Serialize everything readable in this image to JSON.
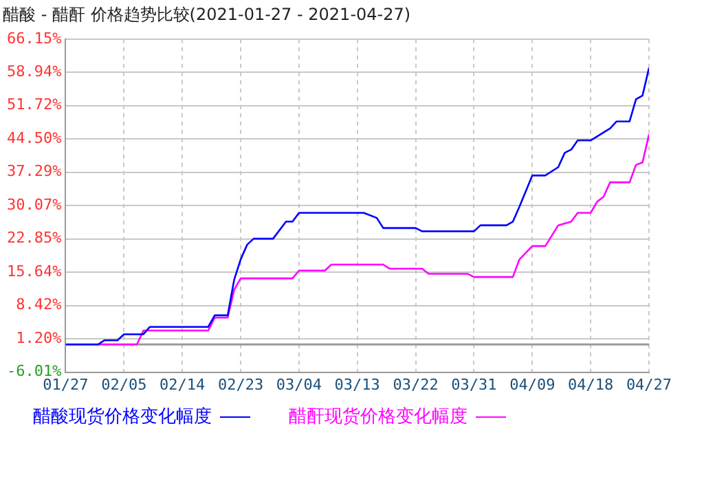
{
  "chart_data": {
    "type": "line",
    "title": "醋酸 - 醋酐 价格趋势比较(2021-01-27 - 2021-04-27)",
    "series": [
      {
        "name": "醋酸现货价格变化幅度",
        "color": "#0000ff",
        "x": [
          "2021-01-27",
          "2021-02-01",
          "2021-02-02",
          "2021-02-04",
          "2021-02-05",
          "2021-02-08",
          "2021-02-09",
          "2021-02-18",
          "2021-02-19",
          "2021-02-21",
          "2021-02-22",
          "2021-02-23",
          "2021-02-24",
          "2021-02-25",
          "2021-02-28",
          "2021-03-02",
          "2021-03-03",
          "2021-03-04",
          "2021-03-14",
          "2021-03-16",
          "2021-03-17",
          "2021-03-22",
          "2021-03-23",
          "2021-03-31",
          "2021-04-01",
          "2021-04-05",
          "2021-04-06",
          "2021-04-07",
          "2021-04-09",
          "2021-04-11",
          "2021-04-13",
          "2021-04-14",
          "2021-04-15",
          "2021-04-16",
          "2021-04-18",
          "2021-04-21",
          "2021-04-22",
          "2021-04-24",
          "2021-04-25",
          "2021-04-26",
          "2021-04-27"
        ],
        "values": [
          0,
          0,
          0.9,
          0.9,
          2.2,
          2.2,
          3.8,
          3.8,
          6.3,
          6.3,
          14,
          18.4,
          21.6,
          22.9,
          22.9,
          26.6,
          26.6,
          28.5,
          28.5,
          27.4,
          25.2,
          25.2,
          24.5,
          24.5,
          25.8,
          25.8,
          26.6,
          29.8,
          36.6,
          36.6,
          38.4,
          41.5,
          42.2,
          44.2,
          44.2,
          46.8,
          48.3,
          48.3,
          53.1,
          53.9,
          59.9
        ]
      },
      {
        "name": "醋酐现货价格变化幅度",
        "color": "#ff00ff",
        "x": [
          "2021-01-27",
          "2021-02-07",
          "2021-02-08",
          "2021-02-18",
          "2021-02-19",
          "2021-02-21",
          "2021-02-22",
          "2021-02-23",
          "2021-03-03",
          "2021-03-04",
          "2021-03-08",
          "2021-03-09",
          "2021-03-17",
          "2021-03-18",
          "2021-03-23",
          "2021-03-24",
          "2021-03-30",
          "2021-03-31",
          "2021-04-06",
          "2021-04-07",
          "2021-04-09",
          "2021-04-11",
          "2021-04-13",
          "2021-04-15",
          "2021-04-16",
          "2021-04-18",
          "2021-04-19",
          "2021-04-20",
          "2021-04-21",
          "2021-04-24",
          "2021-04-25",
          "2021-04-26",
          "2021-04-27"
        ],
        "values": [
          0,
          0,
          3.0,
          3.0,
          5.8,
          5.8,
          11.8,
          14.3,
          14.3,
          16.0,
          16.0,
          17.3,
          17.3,
          16.4,
          16.4,
          15.3,
          15.3,
          14.6,
          14.6,
          18.4,
          21.3,
          21.3,
          25.8,
          26.6,
          28.5,
          28.5,
          30.9,
          32.0,
          35.1,
          35.1,
          38.9,
          39.4,
          45.5
        ]
      }
    ],
    "xlim": [
      "2021-01-27",
      "2021-04-27"
    ],
    "xticks": [
      {
        "value": "2021-01-27",
        "label": "01/27"
      },
      {
        "value": "2021-02-05",
        "label": "02/05"
      },
      {
        "value": "2021-02-14",
        "label": "02/14"
      },
      {
        "value": "2021-02-23",
        "label": "02/23"
      },
      {
        "value": "2021-03-04",
        "label": "03/04"
      },
      {
        "value": "2021-03-13",
        "label": "03/13"
      },
      {
        "value": "2021-03-22",
        "label": "03/22"
      },
      {
        "value": "2021-03-31",
        "label": "03/31"
      },
      {
        "value": "2021-04-09",
        "label": "04/09"
      },
      {
        "value": "2021-04-18",
        "label": "04/18"
      },
      {
        "value": "2021-04-27",
        "label": "04/27"
      }
    ],
    "ylim": [
      -6.01,
      66.15
    ],
    "yticks": [
      {
        "value": -6.01,
        "label": "-6.01%"
      },
      {
        "value": 1.2,
        "label": "1.20%"
      },
      {
        "value": 8.42,
        "label": "8.42%"
      },
      {
        "value": 15.64,
        "label": "15.64%"
      },
      {
        "value": 22.85,
        "label": "22.85%"
      },
      {
        "value": 30.07,
        "label": "30.07%"
      },
      {
        "value": 37.29,
        "label": "37.29%"
      },
      {
        "value": 44.5,
        "label": "44.50%"
      },
      {
        "value": 51.72,
        "label": "51.72%"
      },
      {
        "value": 58.94,
        "label": "58.94%"
      },
      {
        "value": 66.15,
        "label": "66.15%"
      }
    ],
    "ref_lines": [
      {
        "axis": "y",
        "value": 0,
        "color": "#999999"
      }
    ],
    "grid": true,
    "legend": "bottom",
    "marker": "none",
    "line_style": "solid"
  }
}
